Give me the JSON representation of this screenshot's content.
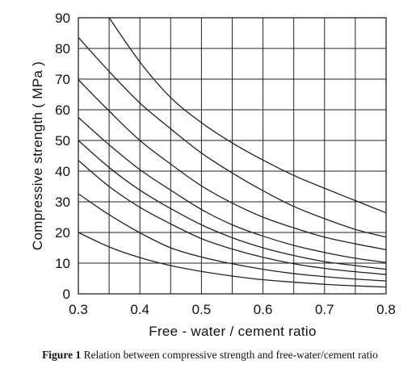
{
  "chart_data": {
    "type": "line",
    "title": "",
    "xlabel": "Free - water / cement ratio",
    "ylabel": "Compressive  strength  ( MPa )",
    "xlim": [
      0.3,
      0.8
    ],
    "ylim": [
      0,
      90
    ],
    "x_ticks": [
      "0.3",
      "0.4",
      "0.5",
      "0.6",
      "0.7",
      "0.8"
    ],
    "y_ticks": [
      "0",
      "10",
      "20",
      "30",
      "40",
      "50",
      "60",
      "70",
      "80",
      "90"
    ],
    "x_grid_step": 0.05,
    "y_grid_step": 10,
    "grid": true,
    "series": [
      {
        "x": [
          0.3,
          0.35,
          0.4,
          0.45,
          0.5,
          0.55,
          0.6,
          0.65,
          0.7,
          0.75,
          0.8
        ],
        "values": [
          null,
          90,
          75.6,
          64,
          55.8,
          49.2,
          43.6,
          38.6,
          34.4,
          30.4,
          26.4
        ]
      },
      {
        "x": [
          0.3,
          0.35,
          0.4,
          0.45,
          0.5,
          0.55,
          0.6,
          0.65,
          0.7,
          0.75,
          0.8
        ],
        "values": [
          83.6,
          72.5,
          62.2,
          53.8,
          45.9,
          39.4,
          33.6,
          28.5,
          24.5,
          21.0,
          18.5
        ]
      },
      {
        "x": [
          0.3,
          0.35,
          0.4,
          0.45,
          0.5,
          0.55,
          0.6,
          0.65,
          0.7,
          0.75,
          0.8
        ],
        "values": [
          69.8,
          59.6,
          50.0,
          42.3,
          35.2,
          29.6,
          25.0,
          21.5,
          18.5,
          16.3,
          14.4
        ]
      },
      {
        "x": [
          0.3,
          0.35,
          0.4,
          0.45,
          0.5,
          0.55,
          0.6,
          0.65,
          0.7,
          0.75,
          0.8
        ],
        "values": [
          57.5,
          48.6,
          40.5,
          33.8,
          27.5,
          22.5,
          18.8,
          15.8,
          13.5,
          11.6,
          10.2
        ]
      },
      {
        "x": [
          0.3,
          0.35,
          0.4,
          0.45,
          0.5,
          0.55,
          0.6,
          0.65,
          0.7,
          0.75,
          0.8
        ],
        "values": [
          50.0,
          41.2,
          33.8,
          27.8,
          22.5,
          18.3,
          15.0,
          12.5,
          10.5,
          9.2,
          8.0
        ]
      },
      {
        "x": [
          0.3,
          0.35,
          0.4,
          0.45,
          0.5,
          0.55,
          0.6,
          0.65,
          0.7,
          0.75,
          0.8
        ],
        "values": [
          43.5,
          35.0,
          28.2,
          22.8,
          18.0,
          14.6,
          11.9,
          9.8,
          8.3,
          7.2,
          6.3
        ]
      },
      {
        "x": [
          0.3,
          0.35,
          0.4,
          0.45,
          0.5,
          0.55,
          0.6,
          0.65,
          0.7,
          0.75,
          0.8
        ],
        "values": [
          32.6,
          25.8,
          19.9,
          15.0,
          12.0,
          9.8,
          8.0,
          6.6,
          5.6,
          4.8,
          4.2
        ]
      },
      {
        "x": [
          0.3,
          0.35,
          0.4,
          0.45,
          0.5,
          0.55,
          0.6,
          0.65,
          0.7,
          0.75,
          0.8
        ],
        "values": [
          20.0,
          15.3,
          11.8,
          9.2,
          7.3,
          5.8,
          4.6,
          3.8,
          3.1,
          2.6,
          2.2
        ]
      }
    ]
  },
  "caption": {
    "label": "Figure 1",
    "text": "Relation between compressive strength and free-water/cement ratio"
  }
}
